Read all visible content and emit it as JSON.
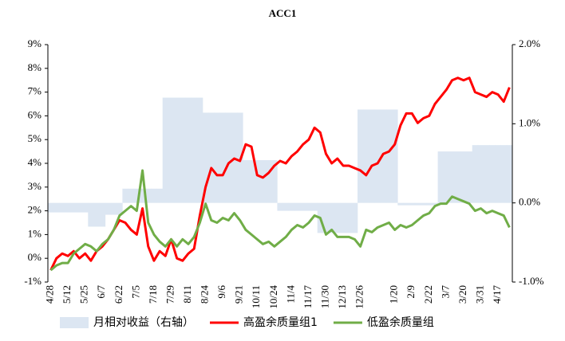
{
  "chart_data": {
    "type": "combo",
    "title": "ACC1",
    "categories": [
      "4/28",
      null,
      null,
      "5/12",
      null,
      null,
      "5/25",
      null,
      null,
      "6/7",
      null,
      null,
      "6/22",
      null,
      null,
      "7/5",
      null,
      null,
      "7/18",
      null,
      null,
      "7/29",
      null,
      null,
      "8/11",
      null,
      null,
      "8/24",
      null,
      null,
      "9/6",
      null,
      null,
      "9/21",
      null,
      null,
      "10/11",
      null,
      null,
      "10/24",
      null,
      null,
      "11/4",
      null,
      null,
      "11/17",
      null,
      null,
      "11/30",
      null,
      null,
      "12/13",
      null,
      null,
      "12/26",
      null,
      null,
      null,
      null,
      null,
      "1/20",
      null,
      null,
      "2/9",
      null,
      null,
      "2/22",
      null,
      null,
      "3/7",
      null,
      null,
      "3/20",
      null,
      null,
      "3/31",
      null,
      null,
      "4/17",
      null,
      null
    ],
    "series": [
      {
        "name": "月相对收益（右轴）",
        "kind": "bar",
        "axis": "y2",
        "color": "#dce6f2",
        "values": [
          -0.12,
          -0.12,
          -0.12,
          -0.12,
          -0.12,
          -0.12,
          -0.12,
          -0.3,
          -0.3,
          -0.3,
          -0.15,
          -0.15,
          -0.15,
          0.18,
          0.18,
          0.18,
          0.18,
          0.18,
          0.18,
          0.18,
          1.33,
          1.33,
          1.33,
          1.33,
          1.33,
          1.33,
          1.33,
          1.14,
          1.14,
          1.14,
          1.14,
          1.14,
          1.14,
          1.14,
          0.54,
          0.54,
          0.54,
          0.54,
          0.54,
          0.54,
          -0.1,
          -0.1,
          -0.1,
          -0.1,
          -0.1,
          -0.1,
          -0.1,
          -0.38,
          -0.38,
          -0.38,
          -0.38,
          -0.38,
          -0.38,
          -0.38,
          1.18,
          1.18,
          1.18,
          1.18,
          1.18,
          1.18,
          1.18,
          -0.03,
          -0.03,
          -0.03,
          -0.03,
          -0.03,
          -0.03,
          -0.03,
          0.65,
          0.65,
          0.65,
          0.65,
          0.65,
          0.65,
          0.73,
          0.73,
          0.73,
          0.73,
          0.73,
          0.73,
          0.73
        ]
      },
      {
        "name": "高盈余质量组1",
        "kind": "line",
        "color": "#ff0000",
        "values": [
          -0.5,
          0.0,
          0.2,
          0.1,
          0.3,
          0.0,
          0.2,
          -0.1,
          0.3,
          0.5,
          0.8,
          1.2,
          1.6,
          1.5,
          1.2,
          1.0,
          2.1,
          0.5,
          -0.1,
          0.3,
          0.1,
          0.8,
          0.0,
          -0.1,
          0.2,
          0.4,
          1.8,
          3.0,
          3.8,
          3.5,
          3.5,
          4.0,
          4.2,
          4.1,
          4.8,
          4.7,
          3.5,
          3.4,
          3.6,
          3.9,
          4.1,
          4.0,
          4.3,
          4.5,
          4.8,
          5.0,
          5.5,
          5.3,
          4.4,
          4.0,
          4.2,
          3.9,
          3.9,
          3.8,
          3.7,
          3.5,
          3.9,
          4.0,
          4.4,
          4.5,
          4.8,
          5.6,
          6.1,
          6.1,
          5.7,
          5.9,
          6.0,
          6.5,
          6.8,
          7.1,
          7.5,
          7.6,
          7.5,
          7.6,
          7.0,
          6.9,
          6.8,
          7.0,
          6.9,
          6.6,
          7.2
        ]
      },
      {
        "name": "低盈余质量组",
        "kind": "line",
        "color": "#70ad47",
        "values": [
          -0.5,
          -0.3,
          -0.2,
          -0.2,
          0.2,
          0.4,
          0.6,
          0.5,
          0.3,
          0.6,
          0.8,
          1.2,
          1.8,
          2.0,
          2.2,
          2.0,
          3.7,
          1.5,
          1.0,
          0.7,
          0.5,
          0.8,
          0.5,
          0.8,
          0.6,
          0.9,
          1.5,
          2.3,
          1.6,
          1.5,
          1.7,
          1.6,
          1.9,
          1.6,
          1.2,
          1.0,
          0.8,
          0.6,
          0.7,
          0.5,
          0.7,
          0.9,
          1.2,
          1.4,
          1.3,
          1.5,
          1.8,
          1.7,
          1.0,
          1.2,
          0.9,
          0.9,
          0.9,
          0.8,
          0.5,
          1.2,
          1.1,
          1.3,
          1.4,
          1.5,
          1.2,
          1.4,
          1.3,
          1.4,
          1.6,
          1.8,
          1.9,
          2.2,
          2.3,
          2.3,
          2.6,
          2.5,
          2.4,
          2.3,
          2.0,
          2.1,
          1.9,
          2.0,
          1.9,
          1.8,
          1.3
        ]
      }
    ],
    "ylim": [
      -1,
      9
    ],
    "yticks": [
      {
        "value": -1,
        "label": "-1%"
      },
      {
        "value": 0,
        "label": "0%"
      },
      {
        "value": 1,
        "label": "1%"
      },
      {
        "value": 2,
        "label": "2%"
      },
      {
        "value": 3,
        "label": "3%"
      },
      {
        "value": 4,
        "label": "4%"
      },
      {
        "value": 5,
        "label": "5%"
      },
      {
        "value": 6,
        "label": "6%"
      },
      {
        "value": 7,
        "label": "7%"
      },
      {
        "value": 8,
        "label": "8%"
      },
      {
        "value": 9,
        "label": "9%"
      }
    ],
    "y2lim": [
      -1,
      2
    ],
    "y2ticks": [
      {
        "value": -1,
        "label": "-1.0%"
      },
      {
        "value": 0,
        "label": "0.0%"
      },
      {
        "value": 1,
        "label": "1.0%"
      },
      {
        "value": 2,
        "label": "2.0%"
      }
    ],
    "legend": "bottom"
  }
}
